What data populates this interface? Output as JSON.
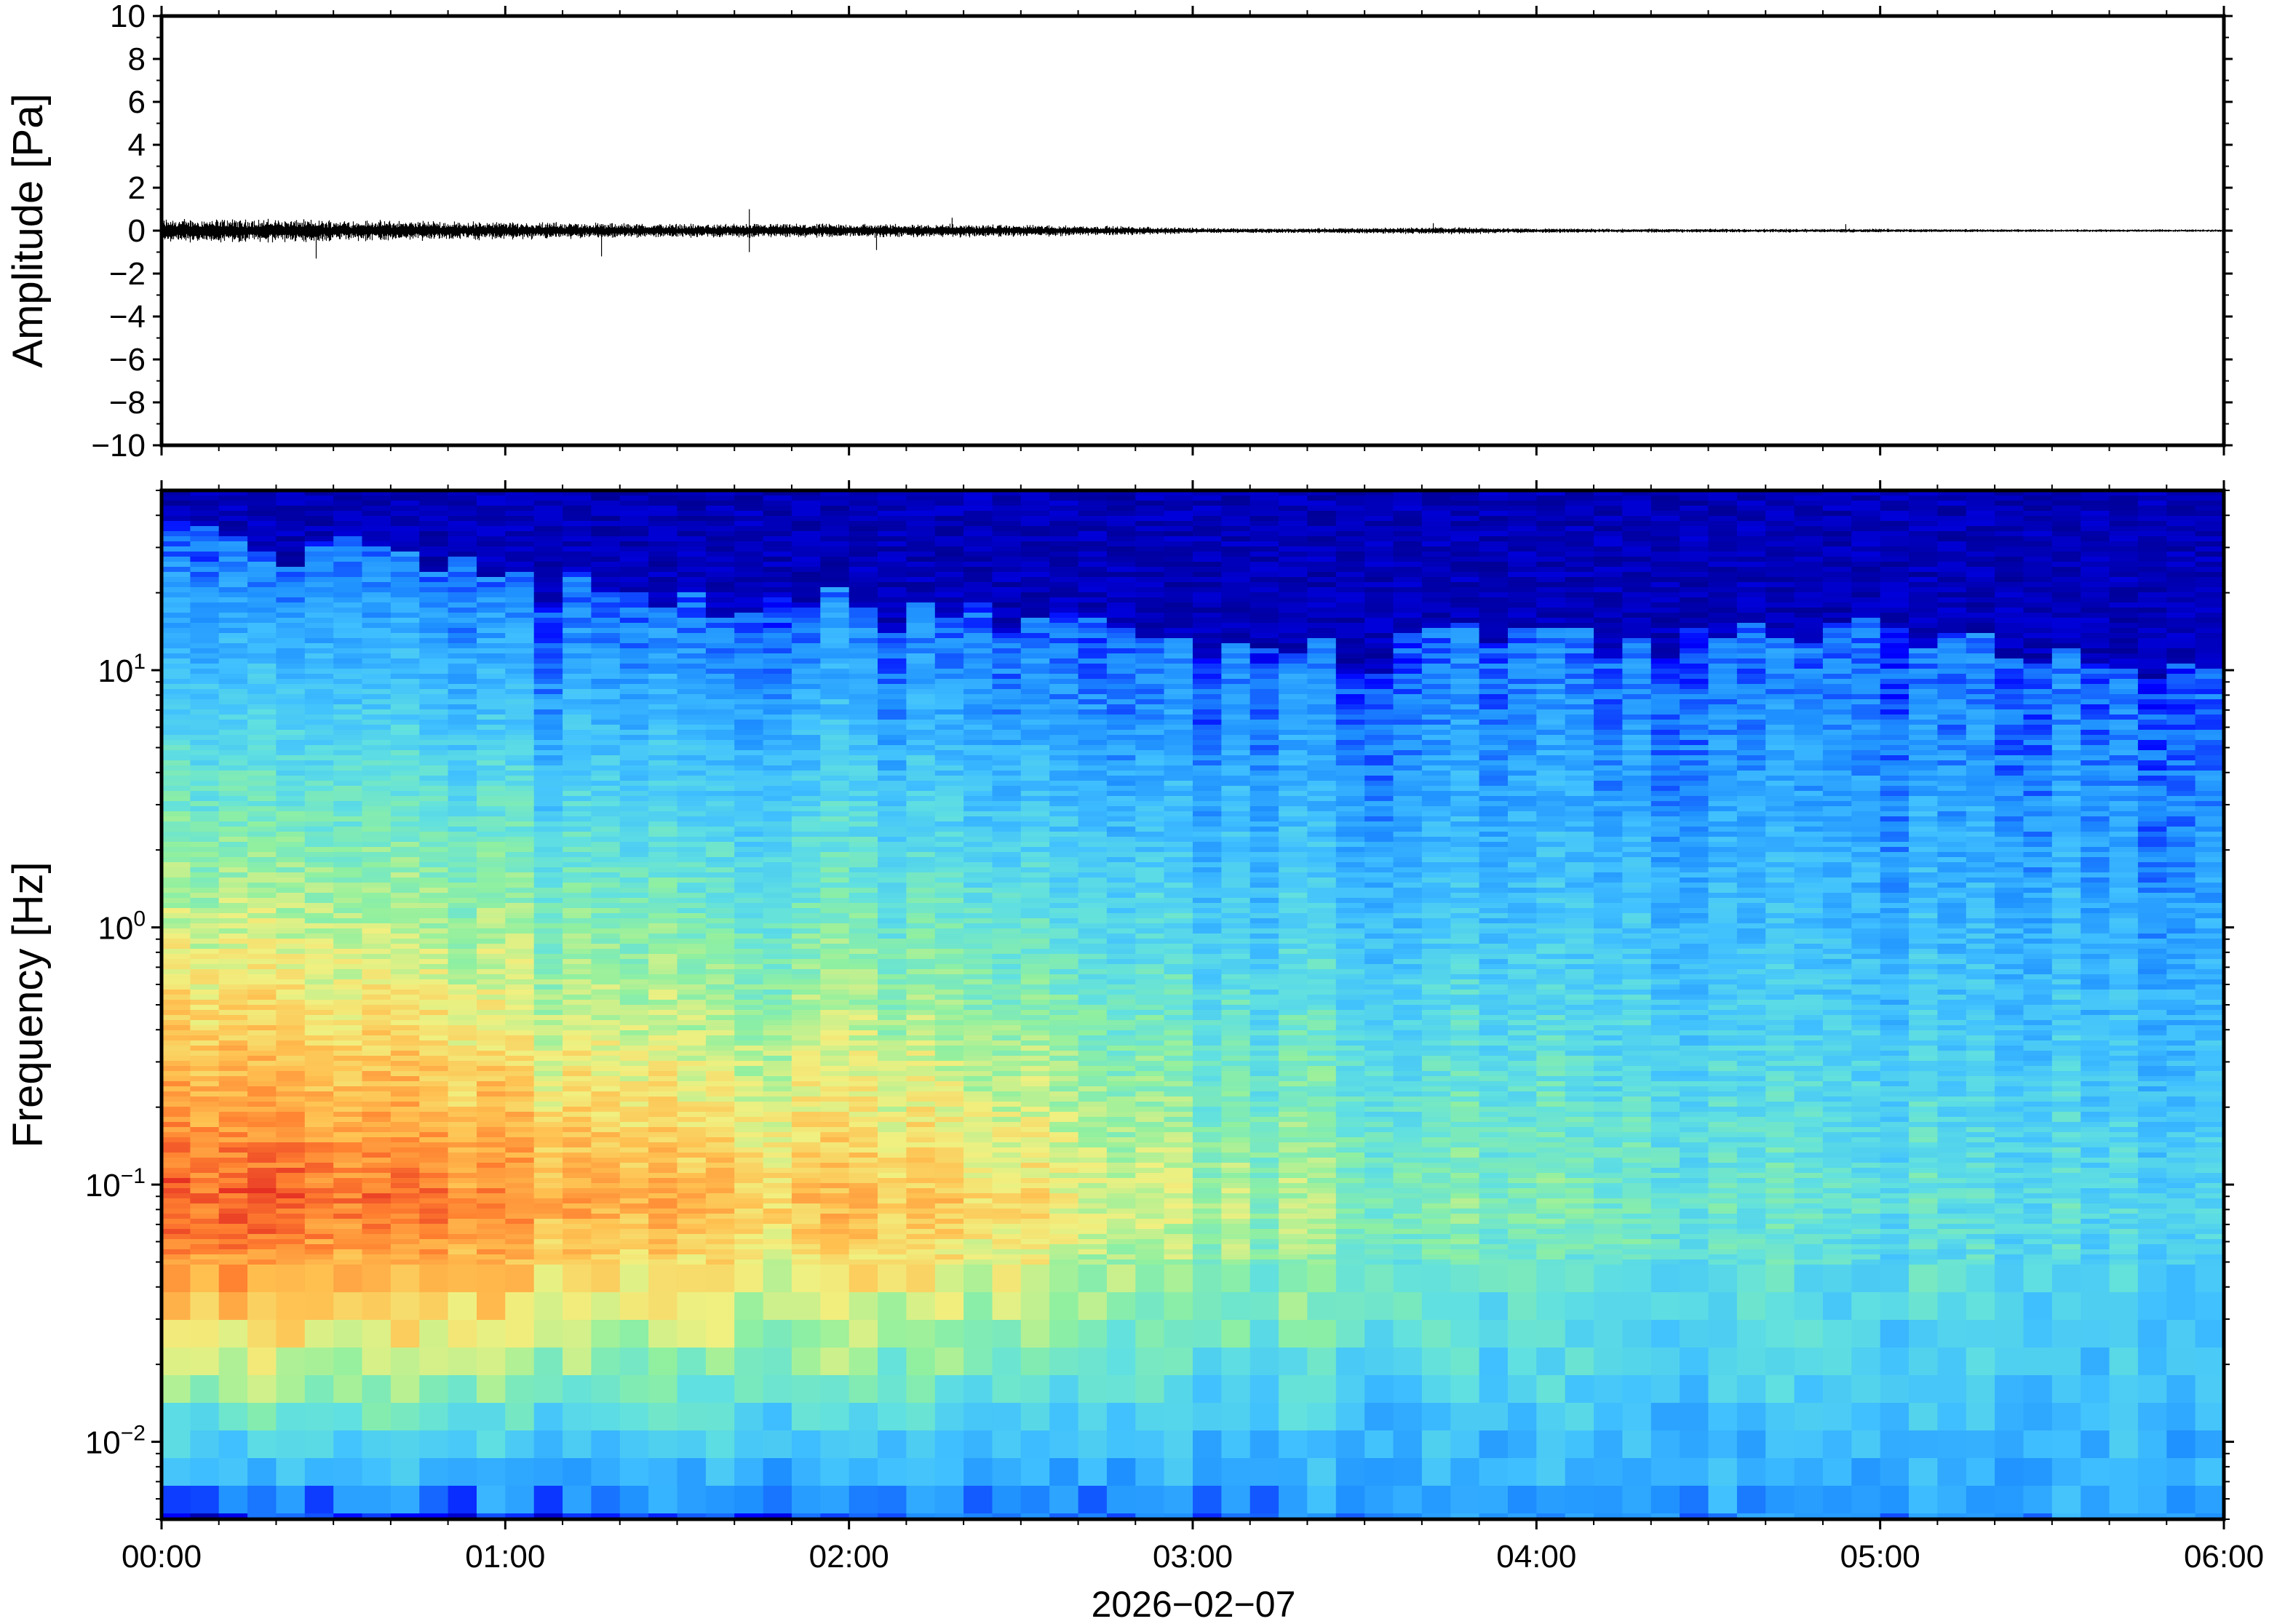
{
  "chart_data": [
    {
      "type": "line",
      "panel": "waveform",
      "ylabel": "Amplitude [Pa]",
      "ylim": [
        -10,
        10
      ],
      "yticks": [
        "10",
        "8",
        "6",
        "4",
        "2",
        "0",
        "−2",
        "−4",
        "−6",
        "−8",
        "−10"
      ],
      "ytick_values": [
        10,
        8,
        6,
        4,
        2,
        0,
        -2,
        -4,
        -6,
        -8,
        -10
      ],
      "x_range": [
        "2026-02-07 00:00",
        "2026-02-07 06:00"
      ],
      "grid": false,
      "series": [
        {
          "color": "#000000",
          "envelope_time_h": [
            0.0,
            0.25,
            0.5,
            0.75,
            1.0,
            1.25,
            1.5,
            1.75,
            2.0,
            2.25,
            2.5,
            2.75,
            3.0,
            3.25,
            3.5,
            3.75,
            4.0,
            4.25,
            4.5,
            4.75,
            5.0,
            5.25,
            5.5,
            5.75,
            6.0
          ],
          "envelope_amplitude_pa": [
            0.6,
            0.6,
            0.55,
            0.5,
            0.45,
            0.4,
            0.35,
            0.35,
            0.35,
            0.35,
            0.3,
            0.25,
            0.15,
            0.12,
            0.15,
            0.18,
            0.12,
            0.1,
            0.1,
            0.1,
            0.1,
            0.08,
            0.07,
            0.07,
            0.07
          ],
          "spikes": [
            {
              "time_h": 0.45,
              "amplitude_pa": -1.3
            },
            {
              "time_h": 1.28,
              "amplitude_pa": -1.2
            },
            {
              "time_h": 1.71,
              "amplitude_pa": 1.0
            },
            {
              "time_h": 1.71,
              "amplitude_pa": -1.0
            },
            {
              "time_h": 2.08,
              "amplitude_pa": -0.9
            },
            {
              "time_h": 2.3,
              "amplitude_pa": 0.6
            },
            {
              "time_h": 3.7,
              "amplitude_pa": 0.35
            },
            {
              "time_h": 4.9,
              "amplitude_pa": 0.3
            }
          ]
        }
      ]
    },
    {
      "type": "heatmap",
      "panel": "spectrogram",
      "ylabel": "Frequency [Hz]",
      "yscale": "log",
      "ylim": [
        0.005,
        50
      ],
      "yticks": [
        {
          "value": 10,
          "base": "10",
          "exp": "1"
        },
        {
          "value": 1,
          "base": "10",
          "exp": "0"
        },
        {
          "value": 0.1,
          "base": "10",
          "exp": "−1"
        },
        {
          "value": 0.01,
          "base": "10",
          "exp": "−2"
        }
      ],
      "xlabel": "2026−02−07",
      "xticks": [
        "00:00",
        "01:00",
        "02:00",
        "03:00",
        "04:00",
        "05:00",
        "06:00"
      ],
      "xtick_values_h": [
        0,
        1,
        2,
        3,
        4,
        5,
        6
      ],
      "xlim_h": [
        0,
        6
      ],
      "colormap": "jet",
      "colors": [
        "#000080",
        "#0000ff",
        "#1e90ff",
        "#40c0ff",
        "#60e0e0",
        "#90f0a0",
        "#f0f080",
        "#ffc050",
        "#ff8030",
        "#e02020"
      ],
      "grid": false,
      "ridge_time_h": [
        0.0,
        0.5,
        1.0,
        1.5,
        2.0,
        2.5,
        3.0,
        3.5,
        4.0,
        4.5,
        5.0,
        5.5,
        6.0
      ],
      "upper_cutoff_hz": [
        35,
        30,
        22,
        20,
        18,
        16,
        13,
        12,
        14,
        13,
        14,
        11,
        9
      ],
      "peak_band_hz": [
        0.03,
        0.15
      ],
      "peak_level": [
        0.95,
        0.9,
        0.85,
        0.78,
        0.75,
        0.72,
        0.6,
        0.55,
        0.5,
        0.48,
        0.45,
        0.42,
        0.4
      ]
    }
  ]
}
